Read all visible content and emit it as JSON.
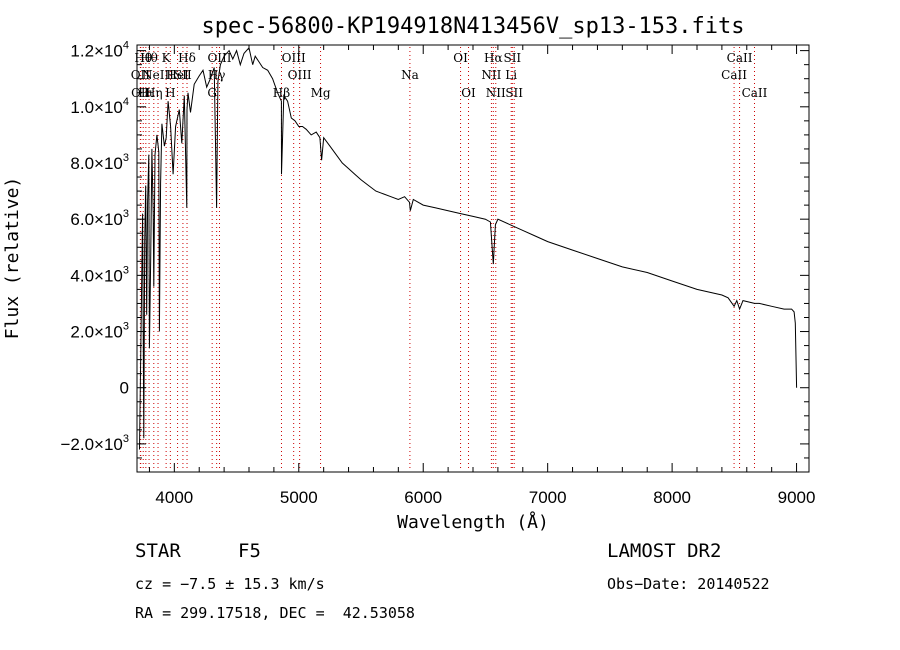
{
  "chart_data": {
    "type": "line",
    "title": "spec-56800-KP194918N413456V_sp13-153.fits",
    "xlabel": "Wavelength (Å)",
    "ylabel": "Flux (relative)",
    "xlim": [
      3700,
      9100
    ],
    "ylim": [
      -3000,
      12200
    ],
    "x_ticks": [
      {
        "value": 4000,
        "label": "4000"
      },
      {
        "value": 5000,
        "label": "5000"
      },
      {
        "value": 6000,
        "label": "6000"
      },
      {
        "value": 7000,
        "label": "7000"
      },
      {
        "value": 8000,
        "label": "8000"
      },
      {
        "value": 9000,
        "label": "9000"
      }
    ],
    "y_ticks": [
      {
        "value": -2000,
        "mant": "−2.0×10",
        "exp": "3"
      },
      {
        "value": 0,
        "mant": "0",
        "exp": ""
      },
      {
        "value": 2000,
        "mant": "2.0×10",
        "exp": "3"
      },
      {
        "value": 4000,
        "mant": "4.0×10",
        "exp": "3"
      },
      {
        "value": 6000,
        "mant": "6.0×10",
        "exp": "3"
      },
      {
        "value": 8000,
        "mant": "8.0×10",
        "exp": "3"
      },
      {
        "value": 10000,
        "mant": "1.0×10",
        "exp": "4"
      },
      {
        "value": 12000,
        "mant": "1.2×10",
        "exp": "4"
      }
    ],
    "grid": false,
    "legend": "none",
    "line_color": "#000000",
    "marker_color": "#cc0000",
    "series": [
      {
        "x": [
          3720,
          3735,
          3745,
          3755,
          3762,
          3770,
          3778,
          3785,
          3795,
          3800,
          3810,
          3820,
          3830,
          3835,
          3845,
          3860,
          3875,
          3880,
          3890,
          3900,
          3920,
          3935,
          3950,
          3970,
          3990,
          4010,
          4040,
          4060,
          4080,
          4100,
          4102,
          4110,
          4130,
          4160,
          4200,
          4230,
          4260,
          4290,
          4320,
          4340,
          4350,
          4370,
          4400,
          4440,
          4470,
          4500,
          4530,
          4560,
          4600,
          4630,
          4650,
          4680,
          4710,
          4750,
          4790,
          4830,
          4860,
          4861,
          4880,
          4910,
          4940,
          4970,
          5000,
          5030,
          5060,
          5100,
          5140,
          5170,
          5183,
          5200,
          5250,
          5300,
          5350,
          5400,
          5450,
          5500,
          5560,
          5620,
          5680,
          5740,
          5800,
          5850,
          5890,
          5896,
          5920,
          6000,
          6100,
          6200,
          6300,
          6400,
          6500,
          6540,
          6563,
          6580,
          6600,
          6700,
          6800,
          6900,
          7000,
          7200,
          7400,
          7600,
          7800,
          8000,
          8200,
          8400,
          8450,
          8498,
          8520,
          8542,
          8570,
          8662,
          8700,
          8800,
          8900,
          8960,
          8980,
          8990,
          9000
        ],
        "y": [
          -2200,
          3000,
          6200,
          -1800,
          5200,
          7200,
          2600,
          6600,
          8300,
          1400,
          4600,
          8500,
          6200,
          3600,
          8300,
          9000,
          8400,
          2000,
          7300,
          9400,
          8600,
          8900,
          10200,
          9300,
          7600,
          9300,
          9900,
          8700,
          10400,
          6400,
          9900,
          10500,
          9800,
          10800,
          11100,
          11300,
          10700,
          11000,
          11400,
          6400,
          10900,
          11500,
          11800,
          12000,
          11700,
          12000,
          11500,
          11900,
          12100,
          11500,
          11800,
          11600,
          11400,
          11300,
          11000,
          10500,
          10200,
          7600,
          10400,
          10200,
          9600,
          9500,
          9300,
          9300,
          9200,
          9000,
          9100,
          8900,
          8100,
          8900,
          8600,
          8300,
          8000,
          7800,
          7600,
          7400,
          7200,
          7000,
          6900,
          6800,
          6700,
          6800,
          6600,
          6300,
          6700,
          6500,
          6400,
          6300,
          6200,
          6100,
          6000,
          5900,
          4400,
          5800,
          6000,
          5800,
          5600,
          5400,
          5200,
          4900,
          4600,
          4300,
          4100,
          3800,
          3500,
          3300,
          3200,
          2900,
          3100,
          2800,
          3100,
          3000,
          3000,
          2900,
          2800,
          2800,
          2700,
          2300,
          0
        ]
      }
    ],
    "spectral_lines": [
      {
        "wl": 3727,
        "label": "OII",
        "row": 2
      },
      {
        "wl": 3730,
        "label": "OII",
        "row": 3
      },
      {
        "wl": 3750,
        "label": "Hθ",
        "row": 1
      },
      {
        "wl": 3771,
        "label": "Hι",
        "row": 3
      },
      {
        "wl": 3797,
        "label": "Hθ",
        "row": 1
      },
      {
        "wl": 3835,
        "label": "Hη",
        "row": 3
      },
      {
        "wl": 3869,
        "label": "NeIII",
        "row": 2
      },
      {
        "wl": 3934,
        "label": "K",
        "row": 1
      },
      {
        "wl": 3968,
        "label": "H",
        "row": 3
      },
      {
        "wl": 4026,
        "label": "HeI",
        "row": 2
      },
      {
        "wl": 4069,
        "label": "SII",
        "row": 2
      },
      {
        "wl": 4102,
        "label": "Hδ",
        "row": 1
      },
      {
        "wl": 4304,
        "label": "G",
        "row": 3
      },
      {
        "wl": 4340,
        "label": "Hγ",
        "row": 2
      },
      {
        "wl": 4363,
        "label": "OIII",
        "row": 1
      },
      {
        "wl": 4861,
        "label": "Hβ",
        "row": 3
      },
      {
        "wl": 4959,
        "label": "OIII",
        "row": 1
      },
      {
        "wl": 5007,
        "label": "OIII",
        "row": 2
      },
      {
        "wl": 5175,
        "label": "Mg",
        "row": 3
      },
      {
        "wl": 5893,
        "label": "Na",
        "row": 2
      },
      {
        "wl": 6300,
        "label": "OI",
        "row": 1
      },
      {
        "wl": 6364,
        "label": "OI",
        "row": 3
      },
      {
        "wl": 6548,
        "label": "NII",
        "row": 2
      },
      {
        "wl": 6563,
        "label": "Hα",
        "row": 1
      },
      {
        "wl": 6583,
        "label": "NII",
        "row": 3
      },
      {
        "wl": 6707,
        "label": "Li",
        "row": 2
      },
      {
        "wl": 6716,
        "label": "SII",
        "row": 1
      },
      {
        "wl": 6731,
        "label": "SII",
        "row": 3
      },
      {
        "wl": 8498,
        "label": "CaII",
        "row": 2
      },
      {
        "wl": 8542,
        "label": "CaII",
        "row": 1
      },
      {
        "wl": 8662,
        "label": "CaII",
        "row": 3
      }
    ]
  },
  "info": {
    "class_label": "STAR",
    "subclass": "F5",
    "survey": "LAMOST DR2",
    "cz": "cz = −7.5 ± 15.3 km/s",
    "obs_date": "Obs−Date: 20140522",
    "coords": "RA = 299.17518, DEC =  42.53058"
  }
}
